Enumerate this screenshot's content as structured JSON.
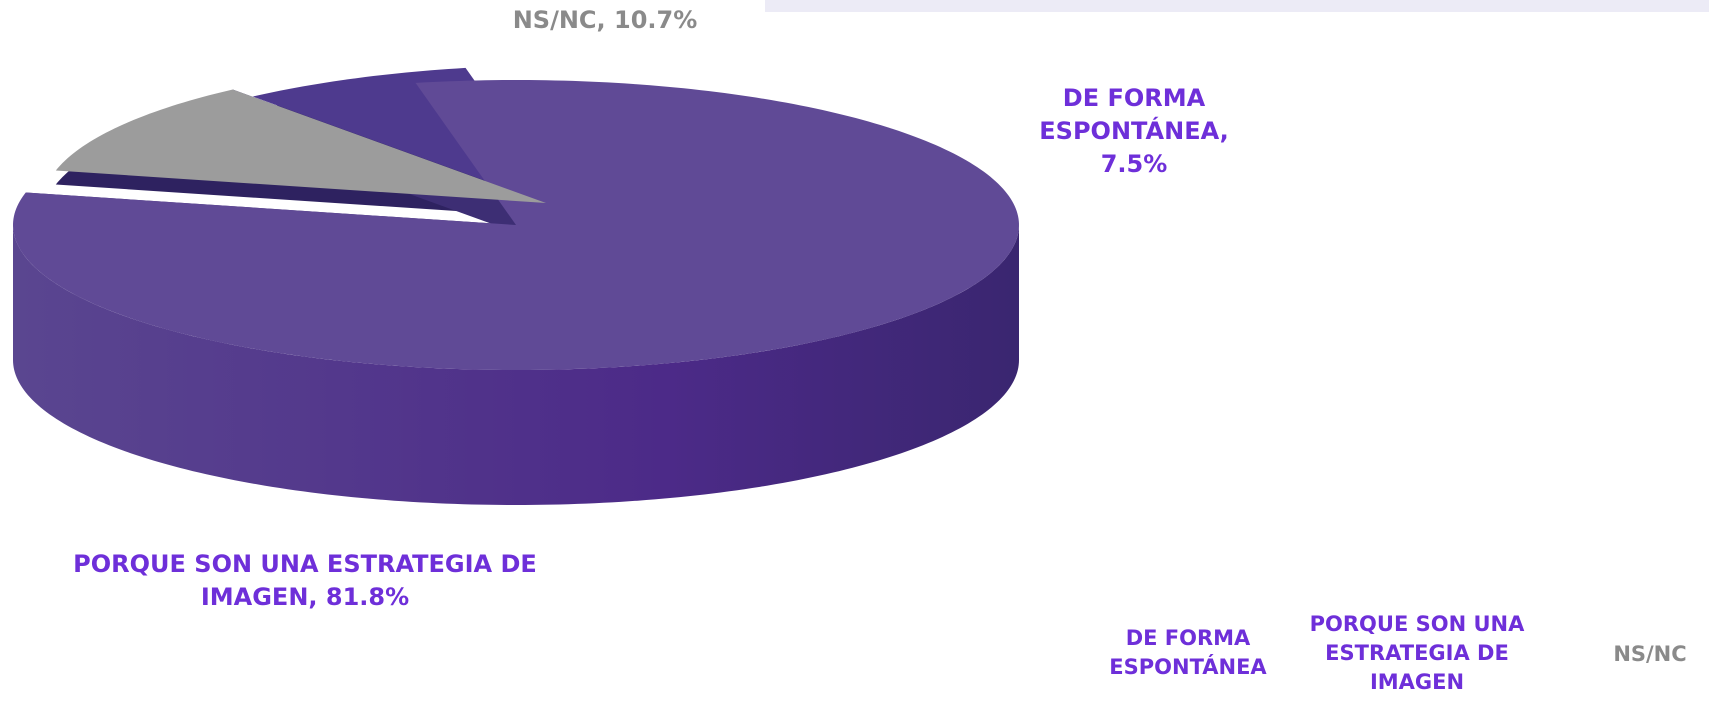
{
  "chart_data": {
    "type": "pie",
    "categories": [
      "DE FORMA ESPONTÁNEA",
      "PORQUE SON UNA ESTRATEGIA DE IMAGEN",
      "NS/NC"
    ],
    "values": [
      7.5,
      81.8,
      10.7
    ],
    "value_labels": [
      "DE FORMA ESPONTÁNEA, 7.5%",
      "PORQUE SON UNA ESTRATEGIA DE IMAGEN, 81.8%",
      "NS/NC, 10.7%"
    ],
    "colors": [
      "#4e3a8e",
      "#604a96",
      "#9c9c9c"
    ],
    "label_colors": [
      "#6e2fd9",
      "#6e2fd9",
      "#8a8a8a"
    ],
    "legend": "bottom-right"
  }
}
